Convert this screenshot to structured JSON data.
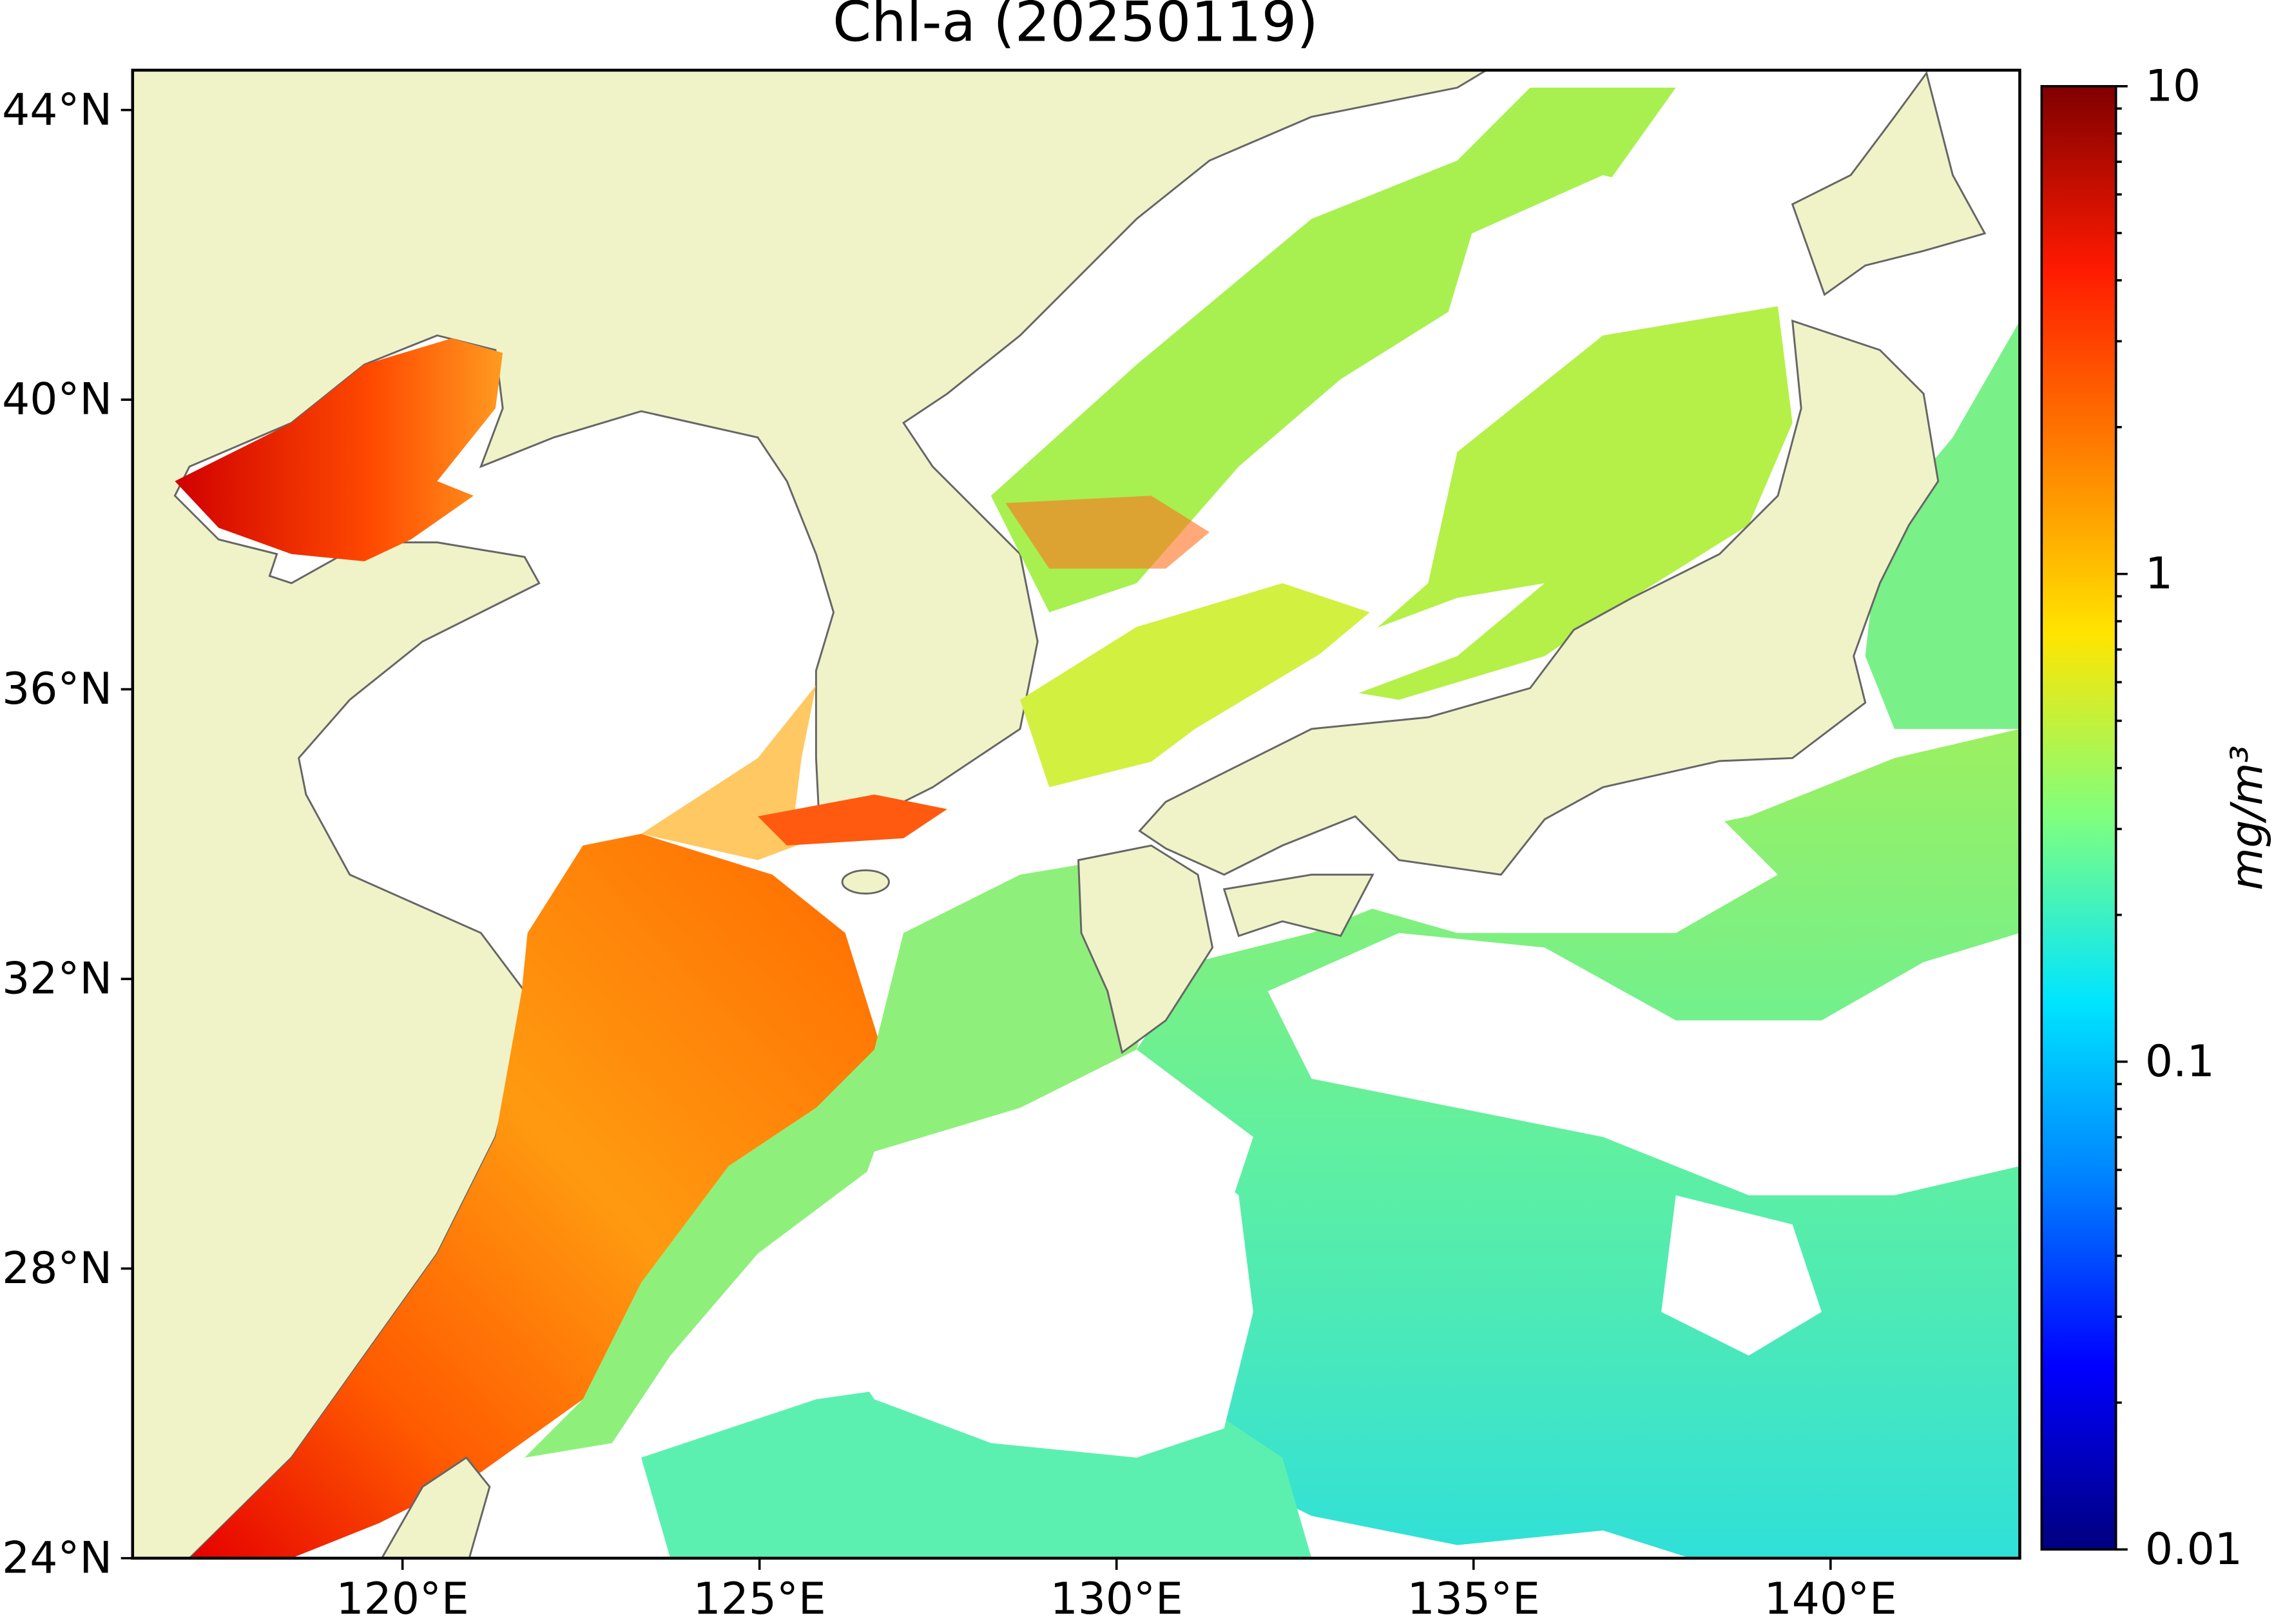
{
  "chart_data": {
    "type": "map",
    "title": "Chl-a (20250119)",
    "xlim": [
      116.22,
      142.65
    ],
    "ylim": [
      24,
      44.55
    ],
    "xticks": [
      {
        "value": 120,
        "label": "120°E"
      },
      {
        "value": 125,
        "label": "125°E"
      },
      {
        "value": 130,
        "label": "130°E"
      },
      {
        "value": 135,
        "label": "135°E"
      },
      {
        "value": 140,
        "label": "140°E"
      }
    ],
    "yticks": [
      {
        "value": 24,
        "label": "24°N"
      },
      {
        "value": 28,
        "label": "28°N"
      },
      {
        "value": 32,
        "label": "32°N"
      },
      {
        "value": 36,
        "label": "36°N"
      },
      {
        "value": 40,
        "label": "40°N"
      },
      {
        "value": 44,
        "label": "44°N"
      }
    ],
    "colorbar": {
      "label": "mg/m³",
      "log": true,
      "lim": [
        0.01,
        10
      ],
      "ticks": [
        0.01,
        0.1,
        1,
        10
      ],
      "colormap": [
        "#00007f",
        "#0000ff",
        "#007fff",
        "#00e5ff",
        "#7fff7f",
        "#ffe500",
        "#ff7f00",
        "#ff1a00",
        "#7f0000"
      ]
    }
  }
}
